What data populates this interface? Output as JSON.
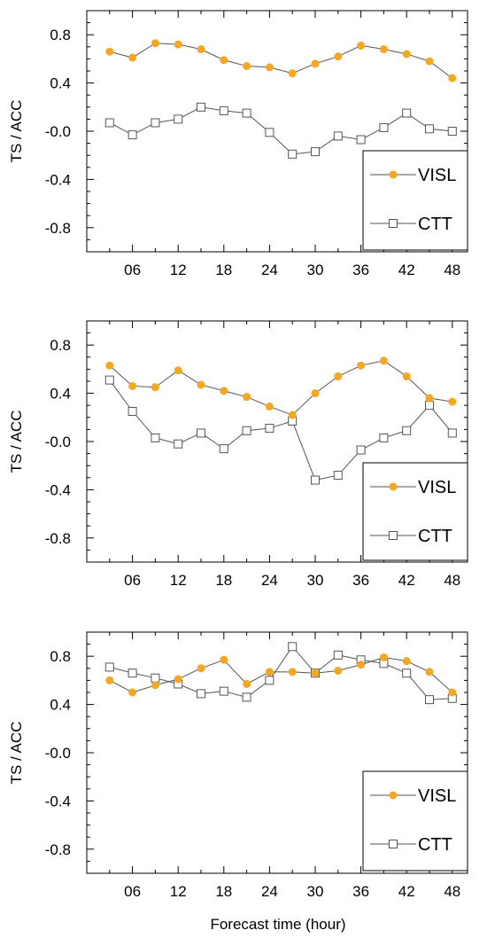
{
  "figure": {
    "xlabel": "Forecast time (hour)"
  },
  "chart_data": [
    {
      "type": "line",
      "ylabel": "TS / ACC",
      "xlim": [
        0,
        50
      ],
      "ylim": [
        -1.0,
        1.0
      ],
      "xticks": [
        6,
        12,
        18,
        24,
        30,
        36,
        42,
        48
      ],
      "xtick_labels": [
        "06",
        "12",
        "18",
        "24",
        "30",
        "36",
        "42",
        "48"
      ],
      "yticks": [
        0.8,
        0.4,
        0.0,
        -0.4,
        -0.8
      ],
      "ytick_labels": [
        "0.8",
        "0.4",
        "-0.0",
        "-0.4",
        "-0.8"
      ],
      "grid": false,
      "legend_position": "bottom-right",
      "x": [
        3,
        6,
        9,
        12,
        15,
        18,
        21,
        24,
        27,
        30,
        33,
        36,
        39,
        42,
        45,
        48
      ],
      "series": [
        {
          "name": "VISL",
          "color": "#f5a623",
          "marker": "filled-circle",
          "values": [
            0.66,
            0.61,
            0.73,
            0.72,
            0.68,
            0.59,
            0.54,
            0.53,
            0.48,
            0.56,
            0.62,
            0.71,
            0.68,
            0.64,
            0.58,
            0.44
          ]
        },
        {
          "name": "CTT",
          "color": "#555555",
          "marker": "open-square",
          "values": [
            0.07,
            -0.03,
            0.07,
            0.1,
            0.2,
            0.17,
            0.15,
            -0.01,
            -0.19,
            -0.17,
            -0.04,
            -0.07,
            0.03,
            0.15,
            0.02,
            0.0
          ]
        }
      ]
    },
    {
      "type": "line",
      "ylabel": "TS / ACC",
      "xlim": [
        0,
        50
      ],
      "ylim": [
        -1.0,
        1.0
      ],
      "xticks": [
        6,
        12,
        18,
        24,
        30,
        36,
        42,
        48
      ],
      "xtick_labels": [
        "06",
        "12",
        "18",
        "24",
        "30",
        "36",
        "42",
        "48"
      ],
      "yticks": [
        0.8,
        0.4,
        0.0,
        -0.4,
        -0.8
      ],
      "ytick_labels": [
        "0.8",
        "0.4",
        "-0.0",
        "-0.4",
        "-0.8"
      ],
      "grid": false,
      "legend_position": "bottom-right",
      "x": [
        3,
        6,
        9,
        12,
        15,
        18,
        21,
        24,
        27,
        30,
        33,
        36,
        39,
        42,
        45,
        48
      ],
      "series": [
        {
          "name": "VISL",
          "color": "#f5a623",
          "marker": "filled-circle",
          "values": [
            0.63,
            0.46,
            0.45,
            0.59,
            0.47,
            0.42,
            0.37,
            0.29,
            0.22,
            0.4,
            0.54,
            0.63,
            0.67,
            0.54,
            0.36,
            0.33
          ]
        },
        {
          "name": "CTT",
          "color": "#555555",
          "marker": "open-square",
          "values": [
            0.51,
            0.25,
            0.03,
            -0.02,
            0.07,
            -0.06,
            0.09,
            0.11,
            0.17,
            -0.32,
            -0.28,
            -0.07,
            0.03,
            0.09,
            0.3,
            0.07
          ]
        }
      ]
    },
    {
      "type": "line",
      "ylabel": "TS / ACC",
      "xlim": [
        0,
        50
      ],
      "ylim": [
        -1.0,
        1.0
      ],
      "xticks": [
        6,
        12,
        18,
        24,
        30,
        36,
        42,
        48
      ],
      "xtick_labels": [
        "06",
        "12",
        "18",
        "24",
        "30",
        "36",
        "42",
        "48"
      ],
      "yticks": [
        0.8,
        0.4,
        0.0,
        -0.4,
        -0.8
      ],
      "ytick_labels": [
        "0.8",
        "0.4",
        "-0.0",
        "-0.4",
        "-0.8"
      ],
      "grid": false,
      "legend_position": "bottom-right",
      "x": [
        3,
        6,
        9,
        12,
        15,
        18,
        21,
        24,
        27,
        30,
        33,
        36,
        39,
        42,
        45,
        48
      ],
      "series": [
        {
          "name": "VISL",
          "color": "#f5a623",
          "marker": "filled-circle",
          "values": [
            0.6,
            0.5,
            0.56,
            0.61,
            0.7,
            0.77,
            0.57,
            0.67,
            0.67,
            0.66,
            0.68,
            0.73,
            0.79,
            0.76,
            0.67,
            0.5
          ]
        },
        {
          "name": "CTT",
          "color": "#555555",
          "marker": "open-square",
          "values": [
            0.71,
            0.66,
            0.62,
            0.57,
            0.49,
            0.51,
            0.46,
            0.6,
            0.88,
            0.66,
            0.81,
            0.77,
            0.74,
            0.66,
            0.44,
            0.45
          ]
        }
      ]
    }
  ]
}
